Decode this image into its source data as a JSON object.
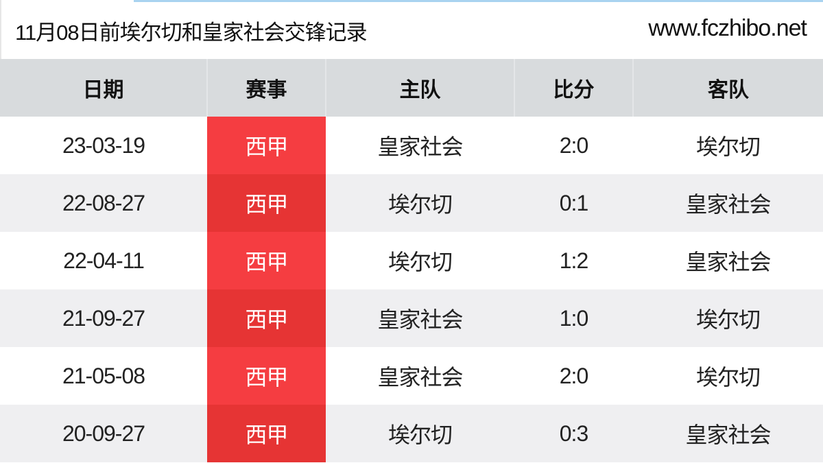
{
  "title": "11月08日前埃尔切和皇家社会交锋记录",
  "site": "www.fczhibo.net",
  "colors": {
    "competition_bg": "#f53d41",
    "competition_bg_alt": "#e63434",
    "header_bg": "#d8dbdd",
    "row_alt_bg": "#efeff1"
  },
  "table": {
    "headers": [
      "日期",
      "赛事",
      "主队",
      "比分",
      "客队"
    ],
    "rows": [
      {
        "date": "23-03-19",
        "competition": "西甲",
        "home": "皇家社会",
        "score": "2:0",
        "away": "埃尔切"
      },
      {
        "date": "22-08-27",
        "competition": "西甲",
        "home": "埃尔切",
        "score": "0:1",
        "away": "皇家社会"
      },
      {
        "date": "22-04-11",
        "competition": "西甲",
        "home": "埃尔切",
        "score": "1:2",
        "away": "皇家社会"
      },
      {
        "date": "21-09-27",
        "competition": "西甲",
        "home": "皇家社会",
        "score": "1:0",
        "away": "埃尔切"
      },
      {
        "date": "21-05-08",
        "competition": "西甲",
        "home": "皇家社会",
        "score": "2:0",
        "away": "埃尔切"
      },
      {
        "date": "20-09-27",
        "competition": "西甲",
        "home": "埃尔切",
        "score": "0:3",
        "away": "皇家社会"
      }
    ]
  }
}
